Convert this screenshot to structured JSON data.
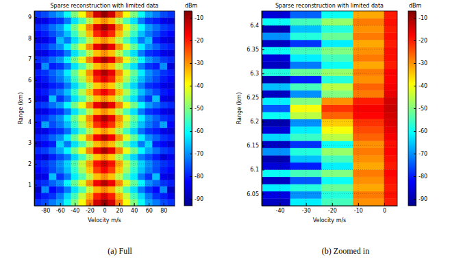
{
  "chart_data": [
    {
      "type": "heatmap",
      "title": "Sparse reconstruction with limited data",
      "caption": "(a) Full",
      "x_label": "Velocity m/s",
      "y_label": "Range (km)",
      "xlim": [
        -95,
        95
      ],
      "ylim": [
        0,
        9.3
      ],
      "xticks": [
        -80,
        -60,
        -40,
        -20,
        0,
        20,
        40,
        60,
        80
      ],
      "yticks": [
        1,
        2,
        3,
        4,
        5,
        6,
        7,
        8,
        9
      ],
      "grid": true,
      "x_edges": [
        -95,
        -85,
        -75,
        -65,
        -55,
        -45,
        -35,
        -25,
        -15,
        -5,
        5,
        15,
        25,
        35,
        45,
        55,
        65,
        75,
        85,
        95
      ],
      "y_edges": [
        0,
        0.31,
        0.62,
        0.93,
        1.24,
        1.55,
        1.86,
        2.17,
        2.48,
        2.79,
        3.1,
        3.41,
        3.72,
        4.03,
        4.34,
        4.65,
        4.96,
        5.27,
        5.58,
        5.89,
        6.2,
        6.51,
        6.82,
        7.13,
        7.44,
        7.75,
        8.06,
        8.37,
        8.68,
        8.99,
        9.3
      ],
      "cells": [
        [
          -78,
          -76,
          -72,
          -68,
          -60,
          -50,
          -40,
          -28,
          -14,
          -9,
          -14,
          -28,
          -40,
          -50,
          -60,
          -68,
          -72,
          -76,
          -78
        ],
        [
          -84,
          -80,
          -78,
          -72,
          -64,
          -55,
          -44,
          -33,
          -20,
          -15,
          -20,
          -33,
          -44,
          -55,
          -64,
          -72,
          -78,
          -80,
          -84
        ],
        [
          -88,
          -70,
          -82,
          -78,
          -72,
          -63,
          -54,
          -44,
          -33,
          -29,
          -33,
          -44,
          -54,
          -63,
          -72,
          -78,
          -82,
          -70,
          -88
        ],
        [
          -80,
          -78,
          -74,
          -70,
          -61,
          -52,
          -42,
          -30,
          -17,
          -12,
          -17,
          -30,
          -42,
          -52,
          -61,
          -70,
          -74,
          -78,
          -80
        ],
        [
          -86,
          -84,
          -66,
          -78,
          -72,
          -62,
          -54,
          -45,
          -34,
          -30,
          -34,
          -45,
          -54,
          -62,
          -72,
          -78,
          -66,
          -84,
          -86
        ],
        [
          -82,
          -80,
          -76,
          -72,
          -66,
          -57,
          -47,
          -35,
          -23,
          -18,
          -23,
          -35,
          -47,
          -57,
          -66,
          -72,
          -76,
          -80,
          -82
        ],
        [
          -80,
          -78,
          -75,
          -70,
          -64,
          -54,
          -44,
          -32,
          -19,
          -14,
          -19,
          -32,
          -44,
          -54,
          -64,
          -70,
          -75,
          -78,
          -80
        ],
        [
          -84,
          -86,
          -80,
          -76,
          -72,
          -64,
          -55,
          -46,
          -35,
          -31,
          -35,
          -46,
          -55,
          -64,
          -72,
          -76,
          -80,
          -86,
          -84
        ],
        [
          -79,
          -77,
          -73,
          -68,
          -61,
          -51,
          -41,
          -29,
          -16,
          -11,
          -16,
          -29,
          -41,
          -51,
          -61,
          -68,
          -73,
          -77,
          -79
        ],
        [
          -86,
          -82,
          -80,
          -64,
          -72,
          -63,
          -54,
          -45,
          -34,
          -30,
          -34,
          -45,
          -54,
          -63,
          -72,
          -64,
          -80,
          -82,
          -86
        ],
        [
          -80,
          -78,
          -74,
          -70,
          -62,
          -52,
          -42,
          -30,
          -17,
          -12,
          -17,
          -30,
          -42,
          -52,
          -62,
          -70,
          -74,
          -78,
          -80
        ],
        [
          -86,
          -84,
          -80,
          -78,
          -73,
          -64,
          -55,
          -46,
          -35,
          -31,
          -35,
          -46,
          -55,
          -64,
          -73,
          -78,
          -80,
          -84,
          -86
        ],
        [
          -82,
          -68,
          -76,
          -72,
          -66,
          -56,
          -46,
          -34,
          -22,
          -17,
          -22,
          -34,
          -46,
          -56,
          -66,
          -72,
          -76,
          -68,
          -82
        ],
        [
          -80,
          -78,
          -74,
          -70,
          -62,
          -52,
          -42,
          -30,
          -16,
          -11,
          -16,
          -30,
          -42,
          -52,
          -62,
          -70,
          -74,
          -78,
          -80
        ],
        [
          -86,
          -84,
          -80,
          -78,
          -72,
          -63,
          -54,
          -45,
          -34,
          -30,
          -34,
          -45,
          -54,
          -63,
          -72,
          -78,
          -80,
          -84,
          -86
        ],
        [
          -79,
          -77,
          -73,
          -69,
          -61,
          -51,
          -41,
          -29,
          -16,
          -11,
          -16,
          -29,
          -41,
          -51,
          -61,
          -69,
          -73,
          -77,
          -79
        ],
        [
          -86,
          -84,
          -66,
          -78,
          -72,
          -63,
          -54,
          -45,
          -34,
          -30,
          -34,
          -45,
          -54,
          -63,
          -72,
          -78,
          -66,
          -84,
          -86
        ],
        [
          -82,
          -80,
          -76,
          -72,
          -66,
          -56,
          -46,
          -34,
          -22,
          -17,
          -22,
          -34,
          -46,
          -56,
          -66,
          -72,
          -76,
          -80,
          -82
        ],
        [
          -86,
          -84,
          -80,
          -78,
          -72,
          -64,
          -55,
          -46,
          -35,
          -31,
          -35,
          -46,
          -55,
          -64,
          -72,
          -78,
          -80,
          -84,
          -86
        ],
        [
          -82,
          -80,
          -76,
          -72,
          -66,
          -56,
          -46,
          -34,
          -21,
          -16,
          -21,
          -34,
          -46,
          -56,
          -66,
          -72,
          -76,
          -80,
          -82
        ],
        [
          -80,
          -78,
          -74,
          -70,
          -62,
          -52,
          -42,
          -30,
          -16,
          -11,
          -16,
          -30,
          -42,
          -52,
          -62,
          -70,
          -74,
          -78,
          -80
        ],
        [
          -86,
          -70,
          -80,
          -78,
          -72,
          -63,
          -54,
          -45,
          -34,
          -30,
          -34,
          -45,
          -54,
          -63,
          -72,
          -78,
          -80,
          -70,
          -86
        ],
        [
          -79,
          -77,
          -73,
          -69,
          -61,
          -51,
          -41,
          -29,
          -16,
          -11,
          -16,
          -29,
          -41,
          -51,
          -61,
          -69,
          -73,
          -77,
          -79
        ],
        [
          -86,
          -84,
          -80,
          -78,
          -72,
          -63,
          -54,
          -45,
          -34,
          -30,
          -34,
          -45,
          -54,
          -63,
          -72,
          -78,
          -80,
          -84,
          -86
        ],
        [
          -80,
          -78,
          -74,
          -70,
          -62,
          -52,
          -42,
          -30,
          -16,
          -11,
          -16,
          -30,
          -42,
          -52,
          -62,
          -70,
          -74,
          -78,
          -80
        ],
        [
          -86,
          -84,
          -80,
          -66,
          -72,
          -63,
          -54,
          -45,
          -34,
          -30,
          -34,
          -45,
          -54,
          -63,
          -72,
          -66,
          -80,
          -84,
          -86
        ],
        [
          -82,
          -80,
          -76,
          -72,
          -66,
          -56,
          -46,
          -34,
          -21,
          -16,
          -21,
          -34,
          -46,
          -56,
          -66,
          -72,
          -76,
          -80,
          -82
        ],
        [
          -79,
          -77,
          -73,
          -69,
          -61,
          -51,
          -41,
          -29,
          -15,
          -10,
          -15,
          -29,
          -41,
          -51,
          -61,
          -69,
          -73,
          -77,
          -79
        ],
        [
          -86,
          -84,
          -80,
          -78,
          -72,
          -63,
          -54,
          -45,
          -34,
          -30,
          -34,
          -45,
          -54,
          -63,
          -72,
          -78,
          -80,
          -84,
          -86
        ],
        [
          -78,
          -76,
          -72,
          -68,
          -60,
          -50,
          -40,
          -28,
          -14,
          -9,
          -14,
          -28,
          -40,
          -50,
          -60,
          -68,
          -72,
          -76,
          -78
        ]
      ],
      "colorbar": {
        "title": "dBm",
        "range": [
          -93,
          -7
        ],
        "ticks": [
          -90,
          -80,
          -70,
          -60,
          -50,
          -40,
          -30,
          -20,
          -10
        ]
      }
    },
    {
      "type": "heatmap",
      "title": "Sparse reconstruction with limited data",
      "caption": "(b) Zoomed in",
      "x_label": "Velocity m/s",
      "y_label": "Range (km)",
      "xlim": [
        -47,
        5
      ],
      "ylim": [
        6.025,
        6.43
      ],
      "xticks": [
        -40,
        -30,
        -20,
        -10,
        0
      ],
      "yticks": [
        6.05,
        6.1,
        6.15,
        6.2,
        6.25,
        6.3,
        6.35,
        6.4
      ],
      "grid": true,
      "x_edges": [
        -47,
        -36,
        -24,
        -12,
        0,
        5
      ],
      "y_edges": [
        6.025,
        6.04,
        6.055,
        6.07,
        6.085,
        6.1,
        6.115,
        6.13,
        6.145,
        6.16,
        6.175,
        6.19,
        6.205,
        6.22,
        6.235,
        6.25,
        6.265,
        6.28,
        6.295,
        6.31,
        6.325,
        6.34,
        6.355,
        6.37,
        6.385,
        6.4,
        6.415,
        6.43
      ],
      "cells": [
        [
          -88,
          -62,
          -55,
          -30,
          -20
        ],
        [
          -85,
          -70,
          -58,
          -28,
          -19
        ],
        [
          -62,
          -58,
          -52,
          -32,
          -20
        ],
        [
          -88,
          -75,
          -60,
          -30,
          -19
        ],
        [
          -60,
          -55,
          -50,
          -28,
          -18
        ],
        [
          -86,
          -80,
          -62,
          -32,
          -20
        ],
        [
          -90,
          -66,
          -55,
          -30,
          -19
        ],
        [
          -70,
          -58,
          -48,
          -28,
          -18
        ],
        [
          -88,
          -78,
          -60,
          -30,
          -19
        ],
        [
          -64,
          -56,
          -45,
          -26,
          -17
        ],
        [
          -86,
          -62,
          -40,
          -24,
          -16
        ],
        [
          -90,
          -70,
          -35,
          -22,
          -15
        ],
        [
          -60,
          -45,
          -26,
          -18,
          -14
        ],
        [
          -75,
          -40,
          -22,
          -17,
          -13
        ],
        [
          -62,
          -50,
          -30,
          -20,
          -14
        ],
        [
          -88,
          -70,
          -50,
          -28,
          -16
        ],
        [
          -66,
          -55,
          -45,
          -26,
          -17
        ],
        [
          -90,
          -80,
          -58,
          -30,
          -18
        ],
        [
          -58,
          -52,
          -48,
          -28,
          -18
        ],
        [
          -88,
          -72,
          -60,
          -32,
          -20
        ],
        [
          -86,
          -62,
          -55,
          -28,
          -19
        ],
        [
          -60,
          -55,
          -50,
          -30,
          -19
        ],
        [
          -88,
          -78,
          -62,
          -32,
          -20
        ],
        [
          -70,
          -58,
          -52,
          -28,
          -19
        ],
        [
          -90,
          -66,
          -58,
          -30,
          -20
        ],
        [
          -60,
          -55,
          -48,
          -28,
          -19
        ],
        [
          -86,
          -74,
          -60,
          -32,
          -20
        ]
      ],
      "colorbar": {
        "title": "dBm",
        "range": [
          -93,
          -7
        ],
        "ticks": [
          -90,
          -80,
          -70,
          -60,
          -50,
          -40,
          -30,
          -20,
          -10
        ]
      }
    }
  ]
}
